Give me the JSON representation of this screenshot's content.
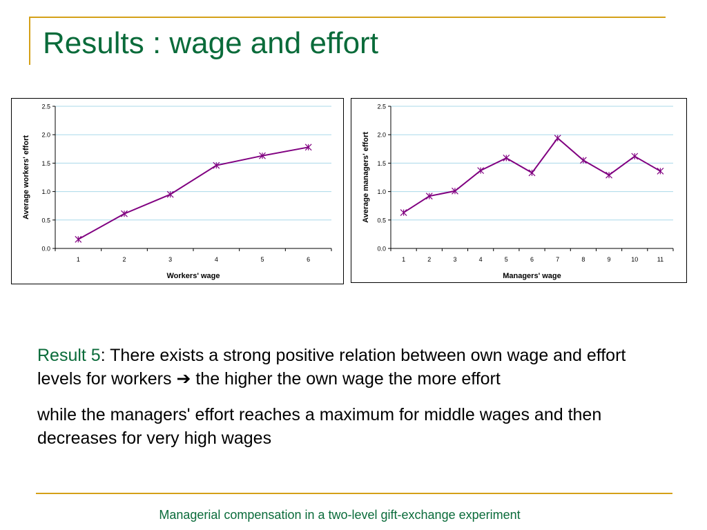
{
  "slide": {
    "title": "Results : wage and effort",
    "result_label": "Result 5",
    "result_text_1": ": There exists a strong positive relation between own wage and effort levels for workers",
    "arrow": "➔",
    "result_text_2": " the higher the own wage the more effort",
    "paragraph_2": "while the managers' effort reaches a maximum for middle wages and then decreases for very high wages",
    "footer": "Managerial compensation in a two-level gift-exchange experiment"
  },
  "colors": {
    "title": "#0a6b3a",
    "accent_rule": "#d4a017",
    "series": "#800080",
    "gridline": "#a8d8ea"
  },
  "chart_data": [
    {
      "type": "line",
      "xlabel": "Workers' wage",
      "ylabel": "Average workers' effort",
      "x": [
        "1",
        "2",
        "3",
        "4",
        "5",
        "6"
      ],
      "series": [
        {
          "values": [
            0.16,
            0.61,
            0.95,
            1.46,
            1.63,
            1.78
          ]
        }
      ],
      "ylim": [
        0,
        2.5
      ],
      "yticks": [
        "0.0",
        "0.5",
        "1.0",
        "1.5",
        "2.0",
        "2.5"
      ],
      "grid": true,
      "marker": "asterisk"
    },
    {
      "type": "line",
      "xlabel": "Managers' wage",
      "ylabel": "Average managers' effort",
      "x": [
        "1",
        "2",
        "3",
        "4",
        "5",
        "6",
        "7",
        "8",
        "9",
        "10",
        "11"
      ],
      "series": [
        {
          "values": [
            0.63,
            0.92,
            1.01,
            1.37,
            1.59,
            1.33,
            1.94,
            1.55,
            1.29,
            1.62,
            1.36
          ]
        }
      ],
      "ylim": [
        0,
        2.5
      ],
      "yticks": [
        "0.0",
        "0.5",
        "1.0",
        "1.5",
        "2.0",
        "2.5"
      ],
      "grid": true,
      "marker": "asterisk"
    }
  ]
}
